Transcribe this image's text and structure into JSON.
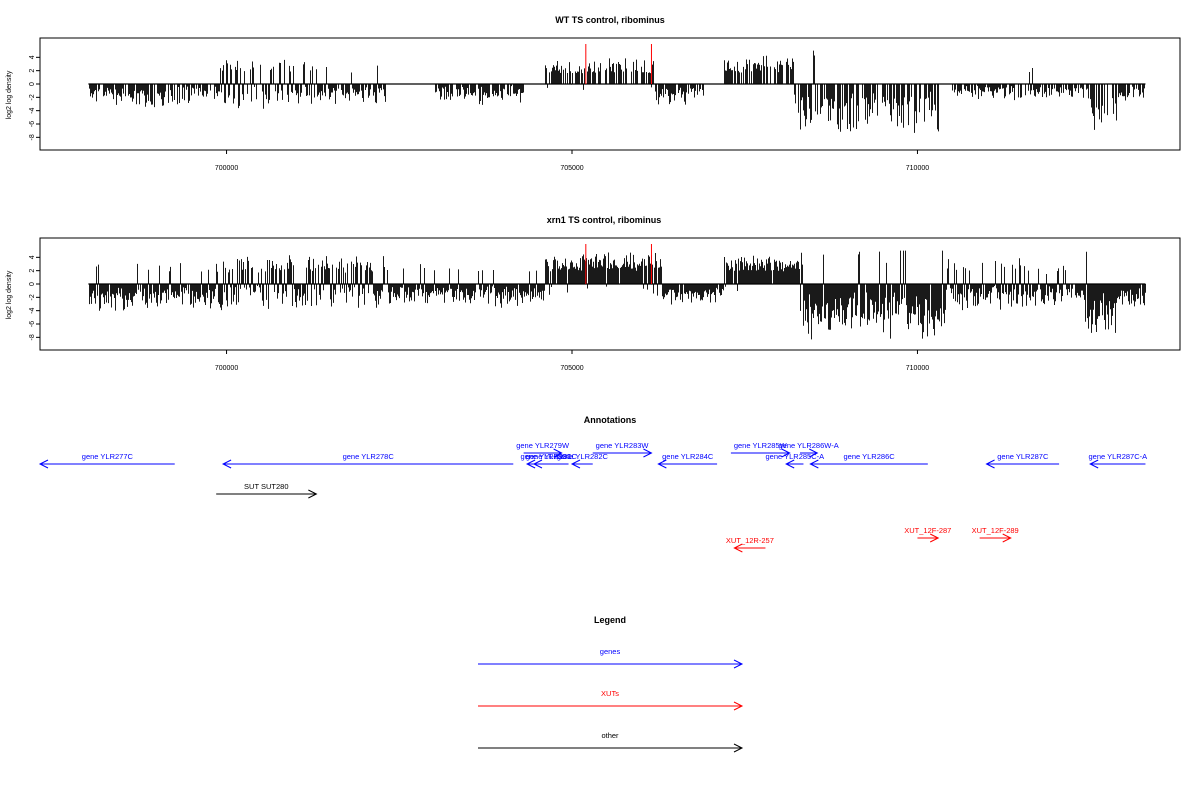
{
  "chart_data": [
    {
      "type": "bar",
      "title": "WT TS control, ribominus",
      "ylabel": "log2 log density",
      "xlim": [
        697300,
        713800
      ],
      "ylim": [
        -9,
        6
      ],
      "yticks": [
        4,
        2,
        0,
        -2,
        -4,
        -6,
        -8
      ],
      "xticks": [
        700000,
        705000,
        710000
      ],
      "highlight_positions": [
        705200,
        706150
      ],
      "highlight_color": "#ff0000",
      "highlight_top": 6,
      "segments": [
        {
          "x0": 698000,
          "x1": 699500,
          "base": -1.0,
          "amp": 2.5,
          "pos": 0.0
        },
        {
          "x0": 699500,
          "x1": 699900,
          "base": -0.5,
          "amp": 2.0,
          "pos": 0.0
        },
        {
          "x0": 699900,
          "x1": 701300,
          "base": -1.0,
          "amp": 2.5,
          "pos": 0.45
        },
        {
          "x0": 701300,
          "x1": 702300,
          "base": -1.0,
          "amp": 2.0,
          "pos": 0.05
        },
        {
          "x0": 703000,
          "x1": 704300,
          "base": -1.0,
          "amp": 2.0,
          "pos": 0.0
        },
        {
          "x0": 704600,
          "x1": 706200,
          "base": 0.3,
          "amp": 3.0,
          "pos": 0.95
        },
        {
          "x0": 706200,
          "x1": 706900,
          "base": -1.0,
          "amp": 2.0,
          "pos": 0.0
        },
        {
          "x0": 707200,
          "x1": 708200,
          "base": 0.5,
          "amp": 3.2,
          "pos": 0.95
        },
        {
          "x0": 708200,
          "x1": 710300,
          "base": -3.0,
          "amp": 4.0,
          "pos": 0.02
        },
        {
          "x0": 710500,
          "x1": 712500,
          "base": -0.8,
          "amp": 1.5,
          "pos": 0.03
        },
        {
          "x0": 712500,
          "x1": 712900,
          "base": -3.5,
          "amp": 4.5,
          "pos": 0.0
        },
        {
          "x0": 712900,
          "x1": 713300,
          "base": -1.0,
          "amp": 1.5,
          "pos": 0.0
        }
      ],
      "density": 0.75,
      "seed": 11
    },
    {
      "type": "bar",
      "title": "xrn1 TS control, ribominus",
      "ylabel": "log2 log density",
      "xlim": [
        697300,
        713800
      ],
      "ylim": [
        -9,
        6
      ],
      "yticks": [
        4,
        2,
        0,
        -2,
        -4,
        -6,
        -8
      ],
      "xticks": [
        700000,
        705000,
        710000
      ],
      "highlight_positions": [
        705200,
        706150
      ],
      "highlight_color": "#ff0000",
      "highlight_top": 6,
      "segments": [
        {
          "x0": 698000,
          "x1": 699800,
          "base": -1.5,
          "amp": 2.5,
          "pos": 0.05
        },
        {
          "x0": 699800,
          "x1": 702300,
          "base": -1.0,
          "amp": 3.0,
          "pos": 0.45
        },
        {
          "x0": 702300,
          "x1": 703800,
          "base": -1.0,
          "amp": 2.0,
          "pos": 0.1
        },
        {
          "x0": 703800,
          "x1": 704600,
          "base": -1.0,
          "amp": 2.5,
          "pos": 0.1
        },
        {
          "x0": 704600,
          "x1": 706300,
          "base": 0.8,
          "amp": 3.5,
          "pos": 0.95
        },
        {
          "x0": 706300,
          "x1": 707200,
          "base": -1.0,
          "amp": 2.0,
          "pos": 0.0
        },
        {
          "x0": 707200,
          "x1": 708300,
          "base": 0.8,
          "amp": 3.2,
          "pos": 0.95
        },
        {
          "x0": 708300,
          "x1": 710400,
          "base": -3.5,
          "amp": 4.0,
          "pos": 0.05
        },
        {
          "x0": 710400,
          "x1": 711800,
          "base": -1.0,
          "amp": 3.0,
          "pos": 0.25
        },
        {
          "x0": 711800,
          "x1": 712400,
          "base": -1.0,
          "amp": 2.0,
          "pos": 0.1
        },
        {
          "x0": 712400,
          "x1": 712900,
          "base": -3.5,
          "amp": 4.5,
          "pos": 0.05
        },
        {
          "x0": 712900,
          "x1": 713300,
          "base": -1.5,
          "amp": 2.0,
          "pos": 0.0
        }
      ],
      "density": 0.95,
      "seed": 29
    },
    {
      "type": "other",
      "title": "Annotations",
      "features": [
        {
          "label": "gene YLR277C",
          "start": 697300,
          "end": 699250,
          "strand": "-",
          "category": "gene",
          "row": 0
        },
        {
          "label": "gene YLR278C",
          "start": 699950,
          "end": 704150,
          "strand": "-",
          "category": "gene",
          "row": 0
        },
        {
          "label": "gene YLR279W",
          "start": 704300,
          "end": 704850,
          "strand": "+",
          "category": "gene",
          "row": 1
        },
        {
          "label": "gene YLR280C",
          "start": 704350,
          "end": 704900,
          "strand": "-",
          "category": "gene",
          "row": 0
        },
        {
          "label": "gene YLR281C",
          "start": 704450,
          "end": 704950,
          "strand": "-",
          "category": "gene",
          "row": 0
        },
        {
          "label": "gene YLR282C",
          "start": 705000,
          "end": 705300,
          "strand": "-",
          "category": "gene",
          "row": 0
        },
        {
          "label": "gene YLR283W",
          "start": 705300,
          "end": 706150,
          "strand": "+",
          "category": "gene",
          "row": 1
        },
        {
          "label": "gene YLR284C",
          "start": 706250,
          "end": 707100,
          "strand": "-",
          "category": "gene",
          "row": 0
        },
        {
          "label": "gene YLR285W",
          "start": 707300,
          "end": 708150,
          "strand": "+",
          "category": "gene",
          "row": 1
        },
        {
          "label": "gene YLR285C-A",
          "start": 708100,
          "end": 708350,
          "strand": "-",
          "category": "gene",
          "row": 0
        },
        {
          "label": "gene YLR286W-A",
          "start": 708300,
          "end": 708550,
          "strand": "+",
          "category": "gene",
          "row": 1
        },
        {
          "label": "gene YLR286C",
          "start": 708450,
          "end": 710150,
          "strand": "-",
          "category": "gene",
          "row": 0
        },
        {
          "label": "gene YLR287C",
          "start": 711000,
          "end": 712050,
          "strand": "-",
          "category": "gene",
          "row": 0
        },
        {
          "label": "gene YLR287C-A",
          "start": 712500,
          "end": 713300,
          "strand": "-",
          "category": "gene",
          "row": 0
        },
        {
          "label": "SUT SUT280",
          "start": 699850,
          "end": 701300,
          "strand": "+",
          "category": "other",
          "row": 2
        },
        {
          "label": "XUT_12R-257",
          "start": 707350,
          "end": 707800,
          "strand": "-",
          "category": "xut",
          "row": 4
        },
        {
          "label": "XUT_12F-287",
          "start": 710000,
          "end": 710300,
          "strand": "+",
          "category": "xut",
          "row": 3
        },
        {
          "label": "XUT_12F-289",
          "start": 710900,
          "end": 711350,
          "strand": "+",
          "category": "xut",
          "row": 3
        }
      ]
    },
    {
      "type": "other",
      "title": "Legend",
      "items": [
        {
          "label": "genes",
          "category": "gene"
        },
        {
          "label": "XUTs",
          "category": "xut"
        },
        {
          "label": "other",
          "category": "other"
        }
      ]
    }
  ],
  "colors": {
    "gene": "#0000ff",
    "xut": "#ff0000",
    "other": "#000000",
    "bars": "#000000",
    "frame": "#000000"
  }
}
